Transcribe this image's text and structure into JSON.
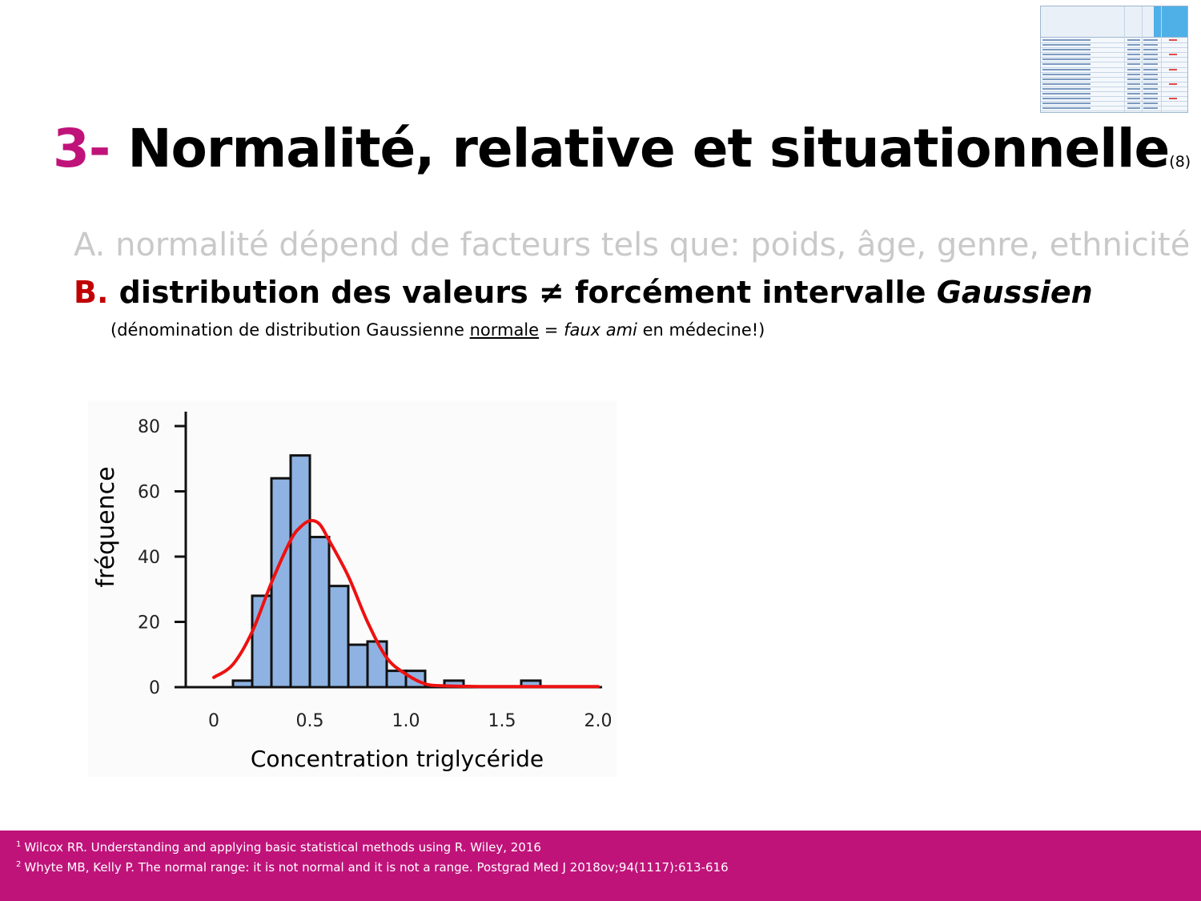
{
  "slide": {
    "title_number": "3-",
    "title_text": "Normalité, relative et situationnelle",
    "title_ref": "(8)",
    "point_a": "A. normalité dépend de facteurs tels que: poids, âge, genre, ethnicité",
    "point_b_label": "B.",
    "point_b_text": "distribution des valeurs ≠ forcément intervalle",
    "point_b_italic": "Gaussien",
    "note_open": "(dénomination de distribution Gaussienne",
    "note_underlined": "normale",
    "note_equals": "=",
    "note_italic": "faux ami",
    "note_close": "en médecine!)"
  },
  "footer": {
    "ref1_number": "1",
    "ref1_text": "Wilcox RR. Understanding and applying basic statistical methods using R. Wiley, 2016",
    "ref2_number": "2",
    "ref2_text": "Whyte MB, Kelly P. The normal range: it is not normal and it is not a range. Postgrad Med J 2018ov;94(1117):613-616"
  },
  "colors": {
    "accent_magenta": "#c0137a",
    "label_red": "#c00000",
    "muted_gray": "#c9c9c9",
    "bar_fill": "#8eb3e3",
    "curve_red": "#ee1111"
  },
  "chart_data": {
    "type": "bar",
    "xlabel": "Concentration triglycéride",
    "ylabel": "fréquence",
    "xlim": [
      0,
      2.0
    ],
    "ylim": [
      0,
      85
    ],
    "xticks": [
      0,
      0.5,
      1.0,
      1.5,
      2.0
    ],
    "xtick_labels": [
      "0",
      "0.5",
      "1.0",
      "1.5",
      "2.0"
    ],
    "yticks": [
      0,
      20,
      40,
      60,
      80
    ],
    "ytick_labels": [
      "0",
      "20",
      "40",
      "60",
      "80"
    ],
    "bin_width": 0.1,
    "bins": [
      {
        "x": 0.1,
        "value": 2
      },
      {
        "x": 0.2,
        "value": 28
      },
      {
        "x": 0.3,
        "value": 64
      },
      {
        "x": 0.4,
        "value": 71
      },
      {
        "x": 0.5,
        "value": 46
      },
      {
        "x": 0.6,
        "value": 31
      },
      {
        "x": 0.7,
        "value": 13
      },
      {
        "x": 0.8,
        "value": 14
      },
      {
        "x": 0.9,
        "value": 5
      },
      {
        "x": 1.0,
        "value": 5
      },
      {
        "x": 1.2,
        "value": 2
      },
      {
        "x": 1.6,
        "value": 2
      }
    ],
    "fit_curve": {
      "x": [
        0.0,
        0.1,
        0.2,
        0.3,
        0.4,
        0.45,
        0.5,
        0.55,
        0.6,
        0.7,
        0.8,
        0.9,
        1.0,
        1.1,
        1.2,
        1.4,
        1.6,
        2.0
      ],
      "y": [
        3,
        7,
        17,
        32,
        45,
        49,
        51,
        50,
        45,
        34,
        20,
        9,
        4,
        1,
        0.4,
        0.2,
        0.2,
        0.2
      ]
    },
    "grid": false
  }
}
